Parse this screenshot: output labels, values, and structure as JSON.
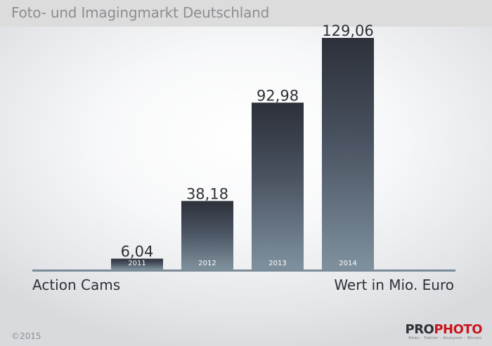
{
  "header": {
    "title": "Foto- und Imagingmarkt Deutschland"
  },
  "chart_data": {
    "type": "bar",
    "title": "Foto- und Imagingmarkt Deutschland",
    "categories": [
      "2011",
      "2012",
      "2013",
      "2014"
    ],
    "series": [
      {
        "values": [
          6.04,
          38.18,
          92.98,
          129.06
        ],
        "value_labels": [
          "6,04",
          "38,18",
          "92,98",
          "129,06"
        ]
      }
    ],
    "xlabel": "Action Cams",
    "ylabel": "Wert in Mio. Euro",
    "ylim": [
      0,
      129.06
    ],
    "grid": false,
    "legend": "none"
  },
  "labels": {
    "left": "Action Cams",
    "right": "Wert in Mio. Euro"
  },
  "footer": {
    "copyright": "©2015",
    "logo_main": "PRO",
    "logo_accent": "PHOTO",
    "logo_tagline": "News · Fakten · Analysen · Wissen"
  },
  "colors": {
    "bar_top": "#2c3039",
    "bar_bottom": "#7f919e",
    "value_label": "#2f3138",
    "category_label": "#ffffff",
    "axis": "#7b8b98",
    "brand_accent": "#c8161d"
  }
}
